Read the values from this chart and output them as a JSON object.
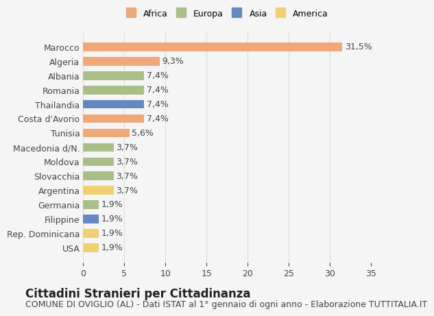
{
  "countries": [
    "Marocco",
    "Algeria",
    "Albania",
    "Romania",
    "Thailandia",
    "Costa d'Avorio",
    "Tunisia",
    "Macedonia d/N.",
    "Moldova",
    "Slovacchia",
    "Argentina",
    "Germania",
    "Filippine",
    "Rep. Dominicana",
    "USA"
  ],
  "values": [
    31.5,
    9.3,
    7.4,
    7.4,
    7.4,
    7.4,
    5.6,
    3.7,
    3.7,
    3.7,
    3.7,
    1.9,
    1.9,
    1.9,
    1.9
  ],
  "labels": [
    "31,5%",
    "9,3%",
    "7,4%",
    "7,4%",
    "7,4%",
    "7,4%",
    "5,6%",
    "3,7%",
    "3,7%",
    "3,7%",
    "3,7%",
    "1,9%",
    "1,9%",
    "1,9%",
    "1,9%"
  ],
  "continents": [
    "Africa",
    "Africa",
    "Europa",
    "Europa",
    "Asia",
    "Africa",
    "Africa",
    "Europa",
    "Europa",
    "Europa",
    "America",
    "Europa",
    "Asia",
    "America",
    "America"
  ],
  "continent_colors": {
    "Africa": "#F0A878",
    "Europa": "#AABF88",
    "Asia": "#6688C0",
    "America": "#F0D070"
  },
  "legend_order": [
    "Africa",
    "Europa",
    "Asia",
    "America"
  ],
  "xlim": [
    0,
    35
  ],
  "xticks": [
    0,
    5,
    10,
    15,
    20,
    25,
    30,
    35
  ],
  "title": "Cittadini Stranieri per Cittadinanza",
  "subtitle": "COMUNE DI OVIGLIO (AL) - Dati ISTAT al 1° gennaio di ogni anno - Elaborazione TUTTITALIA.IT",
  "background_color": "#f5f5f5",
  "bar_background": "#ffffff",
  "grid_color": "#dddddd",
  "text_color": "#444444",
  "label_fontsize": 9,
  "title_fontsize": 12,
  "subtitle_fontsize": 9
}
